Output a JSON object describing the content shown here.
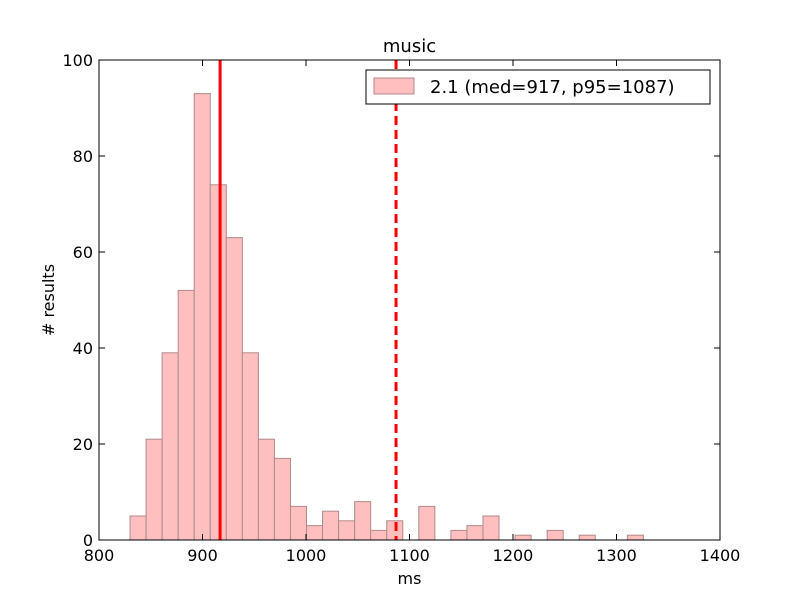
{
  "chart_data": {
    "type": "bar",
    "title": "music",
    "xlabel": "ms",
    "ylabel": "# results",
    "xlim": [
      800,
      1400
    ],
    "ylim": [
      0,
      100
    ],
    "xticks": [
      800,
      900,
      1000,
      1100,
      1200,
      1300,
      1400
    ],
    "yticks": [
      0,
      20,
      40,
      60,
      80,
      100
    ],
    "grid": false,
    "legend_position": "top-right",
    "bin_width": 15.5,
    "series": [
      {
        "name": "2.1 (med=917, p95=1087)",
        "color": "#ffbfbf",
        "edge_color": "#b08a8a",
        "bins": [
          {
            "x": 830,
            "count": 5
          },
          {
            "x": 845.5,
            "count": 21
          },
          {
            "x": 861,
            "count": 39
          },
          {
            "x": 876.5,
            "count": 52
          },
          {
            "x": 892,
            "count": 93
          },
          {
            "x": 907.5,
            "count": 74
          },
          {
            "x": 923,
            "count": 63
          },
          {
            "x": 938.5,
            "count": 39
          },
          {
            "x": 954,
            "count": 21
          },
          {
            "x": 969.5,
            "count": 17
          },
          {
            "x": 985,
            "count": 7
          },
          {
            "x": 1000.5,
            "count": 3
          },
          {
            "x": 1016,
            "count": 6
          },
          {
            "x": 1031.5,
            "count": 4
          },
          {
            "x": 1047,
            "count": 8
          },
          {
            "x": 1062.5,
            "count": 2
          },
          {
            "x": 1078,
            "count": 4
          },
          {
            "x": 1109,
            "count": 7
          },
          {
            "x": 1140,
            "count": 2
          },
          {
            "x": 1155.5,
            "count": 3
          },
          {
            "x": 1171,
            "count": 5
          },
          {
            "x": 1202,
            "count": 1
          },
          {
            "x": 1233,
            "count": 2
          },
          {
            "x": 1264,
            "count": 1
          },
          {
            "x": 1310.5,
            "count": 1
          }
        ]
      }
    ],
    "reference_lines": [
      {
        "kind": "median",
        "x": 917,
        "style": "solid",
        "color": "#ff0000"
      },
      {
        "kind": "p95",
        "x": 1087,
        "style": "dashed",
        "color": "#ff0000"
      }
    ]
  }
}
